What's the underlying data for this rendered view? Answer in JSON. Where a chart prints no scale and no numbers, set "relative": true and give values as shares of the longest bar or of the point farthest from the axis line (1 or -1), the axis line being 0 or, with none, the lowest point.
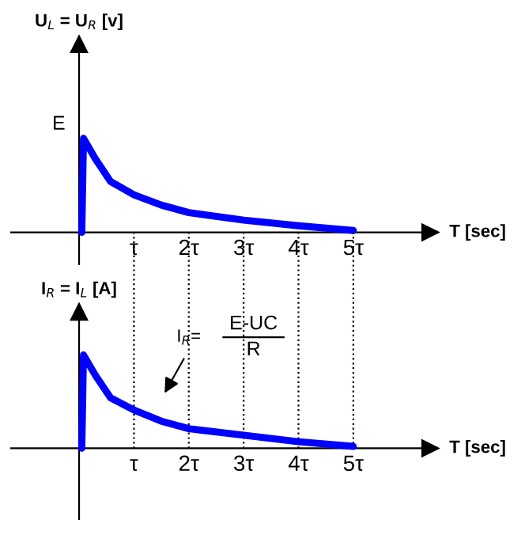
{
  "chart_data": [
    {
      "type": "line",
      "ylabel": "U$_{L}$ = U$_{R}$ [v]",
      "xlabel": "T [sec]",
      "relative": true,
      "xlim": [
        -1.24,
        6.4
      ],
      "xticks": [
        {
          "value": 1,
          "label": "τ"
        },
        {
          "value": 2,
          "label": "2τ"
        },
        {
          "value": 3,
          "label": "3τ"
        },
        {
          "value": 4,
          "label": "4τ"
        },
        {
          "value": 5,
          "label": "5τ"
        }
      ],
      "x": [
        0.05,
        0.08,
        0.3,
        0.575,
        1,
        1.5,
        2,
        3,
        4,
        5
      ],
      "series": [
        {
          "color": "#0000ff",
          "values": [
            0,
            1,
            0.78,
            0.54,
            0.4,
            0.29,
            0.21,
            0.13,
            0.07,
            0.02
          ]
        }
      ],
      "annotations": [
        {
          "text": "E",
          "x": 0,
          "y": 1
        }
      ]
    },
    {
      "type": "line",
      "ylabel": "I$_{R}$ = I$_{L}$ [A]",
      "xlabel": "T [sec]",
      "relative": true,
      "xlim": [
        -1.24,
        6.4
      ],
      "xticks": [
        {
          "value": 1,
          "label": "τ"
        },
        {
          "value": 2,
          "label": "2τ"
        },
        {
          "value": 3,
          "label": "3τ"
        },
        {
          "value": 4,
          "label": "4τ"
        },
        {
          "value": 5,
          "label": "5τ"
        }
      ],
      "x": [
        0.05,
        0.08,
        0.3,
        0.575,
        1,
        1.5,
        2,
        3,
        4,
        5
      ],
      "series": [
        {
          "color": "#0000ff",
          "values": [
            0,
            1,
            0.78,
            0.54,
            0.41,
            0.29,
            0.21,
            0.14,
            0.07,
            0.02
          ]
        }
      ],
      "ref_lines": [
        {
          "axis": "x",
          "value": 1,
          "line_style": "dotted"
        },
        {
          "axis": "x",
          "value": 2,
          "line_style": "dotted"
        },
        {
          "axis": "x",
          "value": 3,
          "line_style": "dotted"
        },
        {
          "axis": "x",
          "value": 4,
          "line_style": "dotted"
        },
        {
          "axis": "x",
          "value": 5,
          "line_style": "dotted"
        }
      ],
      "annotations": [
        "I$_{R}$=",
        "E-UC",
        "R"
      ]
    }
  ]
}
